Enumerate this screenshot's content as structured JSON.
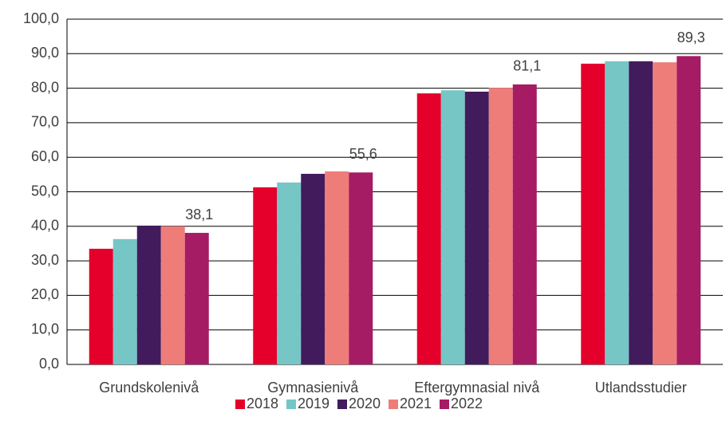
{
  "chart_data": {
    "type": "bar",
    "categories": [
      "Grundskolenivå",
      "Gymnasienivå",
      "Eftergymnasial nivå",
      "Utlandsstudier"
    ],
    "series": [
      {
        "name": "2018",
        "color": "#e4002b",
        "values": [
          33.5,
          51.3,
          78.5,
          87.1
        ]
      },
      {
        "name": "2019",
        "color": "#76c6c6",
        "values": [
          36.3,
          52.7,
          79.4,
          87.8
        ]
      },
      {
        "name": "2020",
        "color": "#421b5c",
        "values": [
          40.2,
          55.2,
          79.0,
          87.8
        ]
      },
      {
        "name": "2021",
        "color": "#ee7d7a",
        "values": [
          40.0,
          55.9,
          80.1,
          87.5
        ]
      },
      {
        "name": "2022",
        "color": "#a51c64",
        "values": [
          38.1,
          55.6,
          81.1,
          89.3
        ],
        "value_labels": [
          "38,1",
          "55,6",
          "81,1",
          "89,3"
        ]
      }
    ],
    "ylim": [
      0,
      100
    ],
    "yticks": [
      {
        "value": 0,
        "label": "0,0"
      },
      {
        "value": 10,
        "label": "10,0"
      },
      {
        "value": 20,
        "label": "20,0"
      },
      {
        "value": 30,
        "label": "30,0"
      },
      {
        "value": 40,
        "label": "40,0"
      },
      {
        "value": 50,
        "label": "50,0"
      },
      {
        "value": 60,
        "label": "60,0"
      },
      {
        "value": 70,
        "label": "70,0"
      },
      {
        "value": 80,
        "label": "80,0"
      },
      {
        "value": 90,
        "label": "90,0"
      },
      {
        "value": 100,
        "label": "100,0"
      }
    ],
    "grid": true,
    "legend": "bottom"
  }
}
